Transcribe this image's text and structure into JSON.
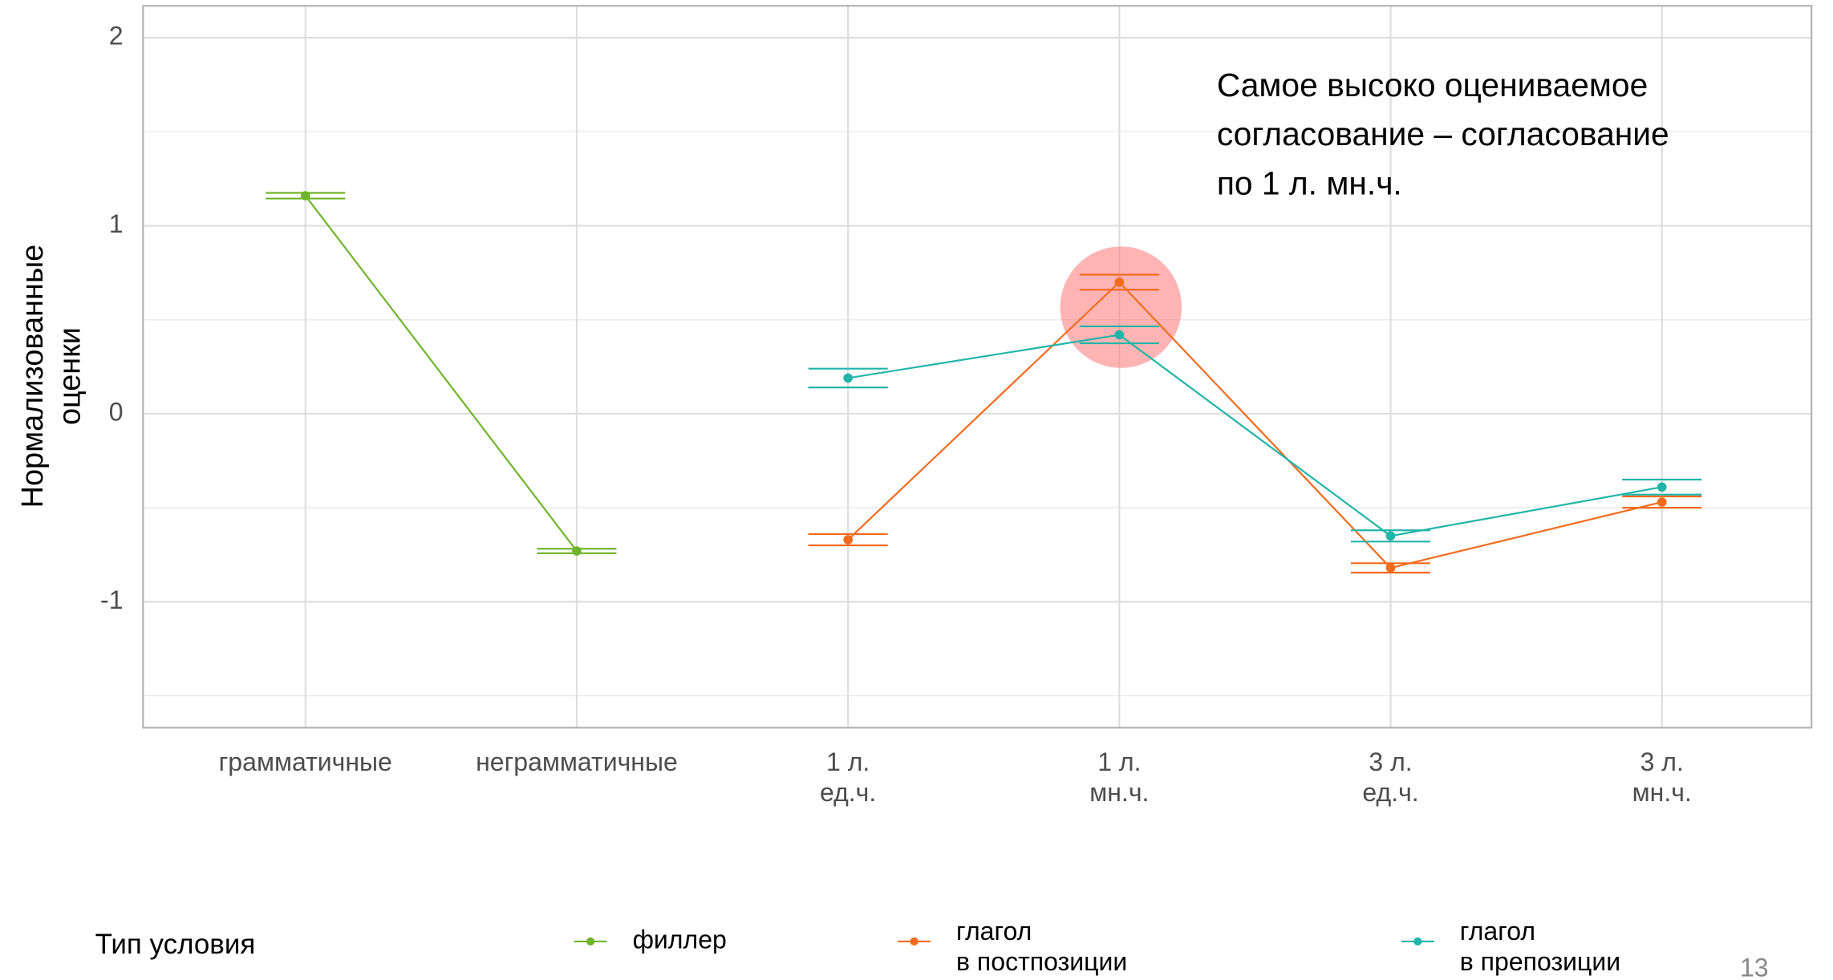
{
  "chart_data": {
    "type": "line",
    "categories": [
      [
        "грамматичные"
      ],
      [
        "неграмматичные"
      ],
      [
        "1 л.",
        "ед.ч."
      ],
      [
        "1 л.",
        "мн.ч."
      ],
      [
        "3 л.",
        "ед.ч."
      ],
      [
        "3 л.",
        "мн.ч."
      ]
    ],
    "y_label": [
      "Нормализованные",
      "оценки"
    ],
    "ylim": [
      -1.67,
      2.17
    ],
    "yticks": [
      -1,
      0,
      1,
      2
    ],
    "minor_yticks": [
      -1.5,
      -0.5,
      0.5,
      1.5
    ],
    "grid": true,
    "series": [
      {
        "name": [
          "филлер"
        ],
        "color": "#6fb52c",
        "values": [
          1.16,
          -0.73,
          null,
          null,
          null,
          null
        ],
        "errors": [
          0.015,
          0.012,
          null,
          null,
          null,
          null
        ]
      },
      {
        "name": [
          "глагол",
          "в постпозиции"
        ],
        "color": "#f26b1d",
        "values": [
          null,
          null,
          -0.67,
          0.7,
          -0.82,
          -0.47
        ],
        "errors": [
          null,
          null,
          0.03,
          0.04,
          0.025,
          0.03
        ]
      },
      {
        "name": [
          "глагол",
          "в препозиции"
        ],
        "color": "#20b5a8",
        "values": [
          null,
          null,
          0.19,
          0.42,
          -0.65,
          -0.39
        ],
        "errors": [
          null,
          null,
          0.05,
          0.045,
          0.03,
          0.04
        ]
      }
    ],
    "legend_title": "Тип условия",
    "annotation": [
      "Самое высоко оцениваемое",
      "согласование – согласование",
      "по 1 л. мн.ч."
    ],
    "page_number": "13"
  }
}
